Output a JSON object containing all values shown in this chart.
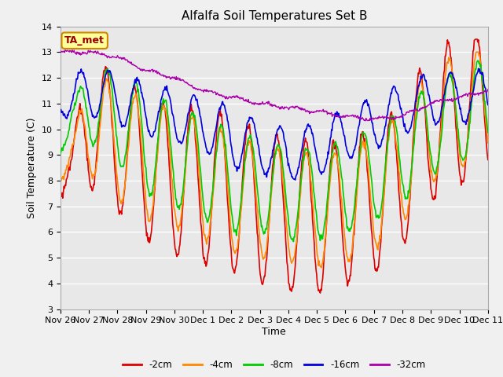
{
  "title": "Alfalfa Soil Temperatures Set B",
  "xlabel": "Time",
  "ylabel": "Soil Temperature (C)",
  "ylim": [
    3.0,
    14.0
  ],
  "yticks": [
    3.0,
    4.0,
    5.0,
    6.0,
    7.0,
    8.0,
    9.0,
    10.0,
    11.0,
    12.0,
    13.0,
    14.0
  ],
  "xtick_labels": [
    "Nov 26",
    "Nov 27",
    "Nov 28",
    "Nov 29",
    "Nov 30",
    "Dec 1",
    "Dec 2",
    "Dec 3",
    "Dec 4",
    "Dec 5",
    "Dec 6",
    "Dec 7",
    "Dec 8",
    "Dec 9",
    "Dec 10",
    "Dec 11"
  ],
  "colors": {
    "-2cm": "#dd0000",
    "-4cm": "#ff8800",
    "-8cm": "#00cc00",
    "-16cm": "#0000dd",
    "-32cm": "#aa00aa"
  },
  "bg_color": "#e8e8e8",
  "annotation_text": "TA_met",
  "annotation_bg": "#ffff99",
  "annotation_border": "#cc8800",
  "figsize": [
    6.4,
    4.8
  ],
  "dpi": 100
}
